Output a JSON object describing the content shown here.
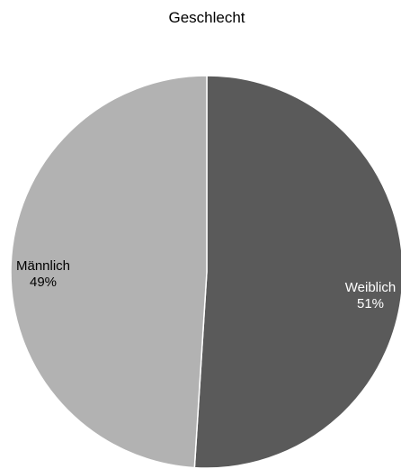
{
  "chart_data": {
    "type": "pie",
    "title": "Geschlecht",
    "slices": [
      {
        "label": "Weiblich",
        "value": 51,
        "value_label": "51%",
        "color": "#5a5a5a",
        "label_color": "#ffffff"
      },
      {
        "label": "Männlich",
        "value": 49,
        "value_label": "49%",
        "color": "#b2b2b2",
        "label_color": "#000000"
      }
    ],
    "separator_color": "#ffffff"
  }
}
